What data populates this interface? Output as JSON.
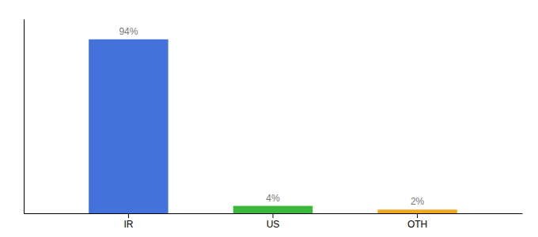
{
  "chart_data": {
    "type": "bar",
    "categories": [
      "IR",
      "US",
      "OTH"
    ],
    "values": [
      94,
      4,
      2
    ],
    "value_labels": [
      "94%",
      "4%",
      "2%"
    ],
    "colors": [
      "#4472db",
      "#3cb93c",
      "#f5a623"
    ],
    "ylim": [
      0,
      105
    ],
    "data_labels": true,
    "tick_labels": "x",
    "grid": false
  }
}
